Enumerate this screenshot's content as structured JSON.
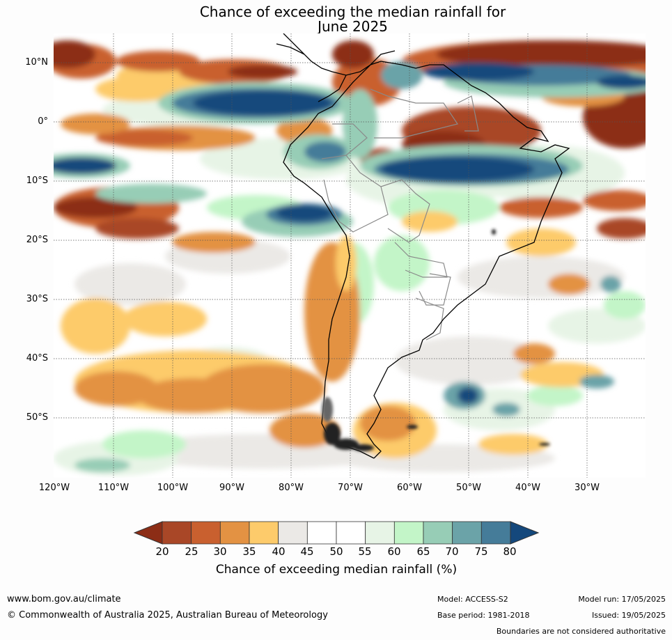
{
  "title": {
    "line1": "Chance of exceeding the median rainfall for",
    "line2": "June 2025"
  },
  "map": {
    "lat_labels": [
      "10°N",
      "0°",
      "10°S",
      "20°S",
      "30°S",
      "40°S",
      "50°S"
    ],
    "lon_labels": [
      "120°W",
      "110°W",
      "100°W",
      "90°W",
      "80°W",
      "70°W",
      "60°W",
      "50°W",
      "40°W",
      "30°W"
    ]
  },
  "colorbar": {
    "ticks": [
      "20",
      "25",
      "30",
      "35",
      "40",
      "45",
      "50",
      "55",
      "60",
      "65",
      "70",
      "75",
      "80"
    ],
    "colors": [
      "#8c2d16",
      "#a94727",
      "#c9602f",
      "#e39243",
      "#fdcb6b",
      "#ebe9e6",
      "#ffffff",
      "#ffffff",
      "#e7f4e6",
      "#c3f5c8",
      "#97cdb6",
      "#6ba3a8",
      "#457c99",
      "#14487c"
    ],
    "label": "Chance of exceeding median rainfall (%)"
  },
  "footer": {
    "website": "www.bom.gov.au/climate",
    "copyright": "© Commonwealth of Australia 2025, Australian Bureau of Meteorology",
    "model": "Model: ACCESS-S2",
    "base_period": "Base period: 1981-2018",
    "model_run": "Model run: 17/05/2025",
    "issued": "Issued: 19/05/2025",
    "disclaimer": "Boundaries are not considered authoritative"
  }
}
